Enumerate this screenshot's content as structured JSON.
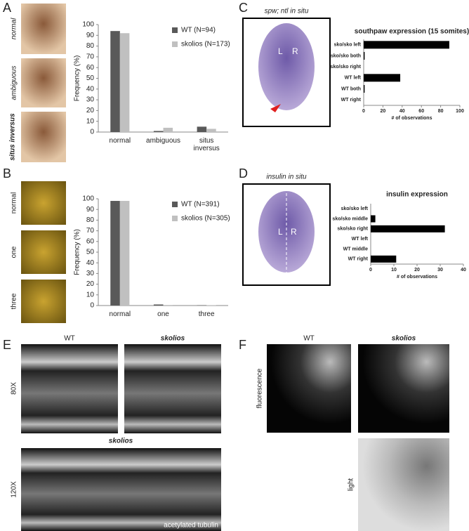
{
  "panel_labels": [
    "A",
    "B",
    "C",
    "D",
    "E",
    "F"
  ],
  "panel_a": {
    "image_labels": [
      "normal",
      "ambiguous",
      "situs inversus"
    ]
  },
  "panel_b": {
    "image_labels": [
      "normal",
      "one",
      "three"
    ]
  },
  "panel_c": {
    "image_title": "spw; ntl in situ",
    "image_marks": [
      "L",
      "R"
    ]
  },
  "panel_d": {
    "image_title": "insulin in situ",
    "image_marks": [
      "L",
      "R"
    ]
  },
  "panel_e": {
    "columns": [
      "WT",
      "skolios"
    ],
    "rows": [
      "80X",
      "120X"
    ],
    "lower_title": "skolios",
    "stain": "acetylated tubulin"
  },
  "panel_f": {
    "columns": [
      "WT",
      "skolios"
    ],
    "rows": [
      "fluorescence",
      "light"
    ]
  },
  "chart_data": [
    {
      "type": "bar",
      "y_label": "Frequency (%)",
      "categories": [
        "normal",
        "ambiguous",
        "situs inversus"
      ],
      "series": [
        {
          "name": "WT (N=94)",
          "color": "#595959",
          "values": [
            94,
            1,
            5
          ]
        },
        {
          "name": "skolios (N=173)",
          "color": "#c0c0c0",
          "values": [
            92,
            4,
            3
          ]
        }
      ],
      "ylim": [
        0,
        100
      ],
      "yticks": [
        0,
        10,
        20,
        30,
        40,
        50,
        60,
        70,
        80,
        90,
        100
      ],
      "legend": "upper right"
    },
    {
      "type": "bar",
      "y_label": "Frequency (%)",
      "categories": [
        "normal",
        "one",
        "three"
      ],
      "series": [
        {
          "name": "WT (N=391)",
          "color": "#595959",
          "values": [
            98,
            1,
            0.3
          ]
        },
        {
          "name": "skolios (N=305)",
          "color": "#c0c0c0",
          "values": [
            98,
            0.5,
            0.3
          ]
        }
      ],
      "ylim": [
        0,
        100
      ],
      "yticks": [
        0,
        10,
        20,
        30,
        40,
        50,
        60,
        70,
        80,
        90,
        100
      ],
      "legend": "upper right"
    },
    {
      "type": "barh",
      "title": "southpaw expression (15 somites)",
      "x_label": "# of observations",
      "categories": [
        "sko/sko left",
        "sko/sko both",
        "sko/sko right",
        "WT left",
        "WT both",
        "WT right"
      ],
      "values": [
        89,
        1,
        0,
        38,
        1,
        0
      ],
      "color": "#000000",
      "xlim": [
        0,
        100
      ],
      "xticks": [
        0,
        20,
        40,
        60,
        80,
        100
      ]
    },
    {
      "type": "barh",
      "title": "insulin expression",
      "x_label": "# of observations",
      "categories": [
        "sko/sko left",
        "sko/sko middle",
        "sko/sko right",
        "WT left",
        "WT middle",
        "WT right"
      ],
      "values": [
        0,
        2,
        32,
        0,
        0,
        11
      ],
      "color": "#000000",
      "xlim": [
        0,
        40
      ],
      "xticks": [
        0,
        10,
        20,
        30,
        40
      ]
    }
  ]
}
